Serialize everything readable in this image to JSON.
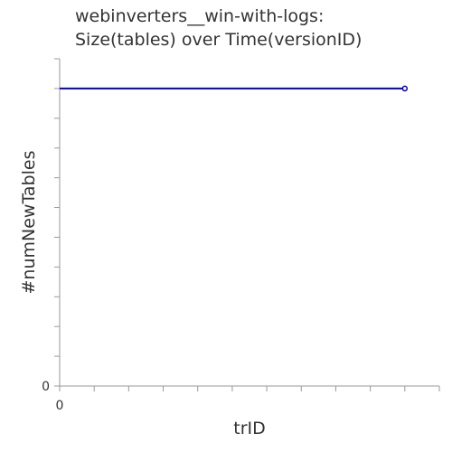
{
  "chart_data": {
    "type": "line",
    "title_lines": [
      "webinverters__win-with-logs:",
      "Size(tables) over Time(versionID)"
    ],
    "xlabel": "trID",
    "ylabel": "#numNewTables",
    "x_tick_labels": [
      "0"
    ],
    "y_tick_labels": [
      "0"
    ],
    "xlim": [
      0,
      11
    ],
    "ylim": [
      0,
      11
    ],
    "grid": false,
    "series": [
      {
        "color": "#0000cc",
        "x": [
          0,
          10
        ],
        "y": [
          10,
          10
        ]
      }
    ]
  }
}
